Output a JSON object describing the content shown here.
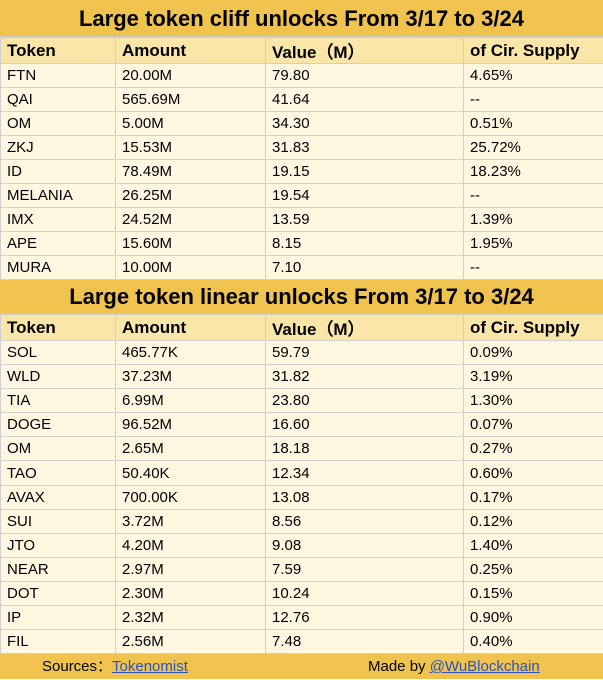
{
  "cliff": {
    "title": "Large token cliff unlocks From  3/17 to 3/24",
    "headers": [
      "Token",
      "Amount",
      "Value（M）",
      "of Cir. Supply"
    ],
    "rows": [
      [
        "FTN",
        "20.00M",
        "79.80",
        "4.65%"
      ],
      [
        "QAI",
        "565.69M",
        "41.64",
        "--"
      ],
      [
        "OM",
        "5.00M",
        "34.30",
        "0.51%"
      ],
      [
        "ZKJ",
        "15.53M",
        "31.83",
        "25.72%"
      ],
      [
        "ID",
        "78.49M",
        "19.15",
        "18.23%"
      ],
      [
        "MELANIA",
        "26.25M",
        "19.54",
        "--"
      ],
      [
        "IMX",
        "24.52M",
        "13.59",
        "1.39%"
      ],
      [
        "APE",
        "15.60M",
        "8.15",
        "1.95%"
      ],
      [
        "MURA",
        "10.00M",
        "7.10",
        "--"
      ]
    ]
  },
  "linear": {
    "title": "Large token linear unlocks From  3/17 to 3/24",
    "headers": [
      "Token",
      "Amount",
      "Value（M）",
      "of Cir. Supply"
    ],
    "rows": [
      [
        "SOL",
        "465.77K",
        "59.79",
        "0.09%"
      ],
      [
        "WLD",
        "37.23M",
        "31.82",
        "3.19%"
      ],
      [
        "TIA",
        "6.99M",
        "23.80",
        "1.30%"
      ],
      [
        "DOGE",
        "96.52M",
        "16.60",
        "0.07%"
      ],
      [
        "OM",
        "2.65M",
        "18.18",
        "0.27%"
      ],
      [
        "TAO",
        "50.40K",
        "12.34",
        "0.60%"
      ],
      [
        "AVAX",
        "700.00K",
        "13.08",
        "0.17%"
      ],
      [
        "SUI",
        "3.72M",
        "8.56",
        "0.12%"
      ],
      [
        "JTO",
        "4.20M",
        "9.08",
        "1.40%"
      ],
      [
        "NEAR",
        "2.97M",
        "7.59",
        "0.25%"
      ],
      [
        "DOT",
        "2.30M",
        "10.24",
        "0.15%"
      ],
      [
        "IP",
        "2.32M",
        "12.76",
        "0.90%"
      ],
      [
        "FIL",
        "2.56M",
        "7.48",
        "0.40%"
      ]
    ]
  },
  "footer": {
    "sources_label": "Sources：",
    "sources_link": "Tokenomist",
    "made_by_label": "Made by ",
    "made_by_link": "@WuBlockchain"
  },
  "colors": {
    "band": "#efc34e",
    "header_row": "#fbe6a9",
    "body_row": "#fff7df",
    "link": "#2a52be"
  }
}
